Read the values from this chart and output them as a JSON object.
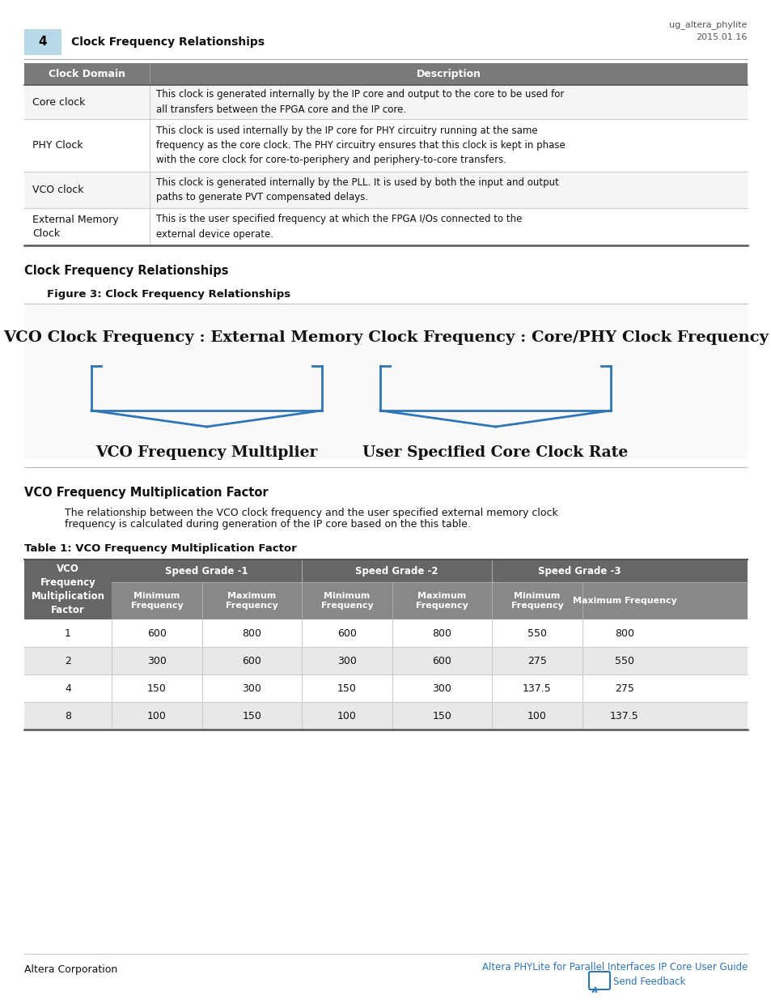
{
  "page_num": "4",
  "header_title": "Clock Frequency Relationships",
  "header_right": "ug_altera_phylite\n2015.01.16",
  "header_bg": "#b8d8e8",
  "top_table_header_bg": "#7a7a7a",
  "top_table_header_fg": "#ffffff",
  "top_table_cols": [
    "Clock Domain",
    "Description"
  ],
  "top_table_rows": [
    [
      "Core clock",
      "This clock is generated internally by the IP core and output to the core to be used for\nall transfers between the FPGA core and the IP core."
    ],
    [
      "PHY Clock",
      "This clock is used internally by the IP core for PHY circuitry running at the same\nfrequency as the core clock. The PHY circuitry ensures that this clock is kept in phase\nwith the core clock for core-to-periphery and periphery-to-core transfers."
    ],
    [
      "VCO clock",
      "This clock is generated internally by the PLL. It is used by both the input and output\npaths to generate PVT compensated delays."
    ],
    [
      "External Memory\nClock",
      "This is the user specified frequency at which the FPGA I/Os connected to the\nexternal device operate."
    ]
  ],
  "section_title": "Clock Frequency Relationships",
  "figure_label": "Figure 3: Clock Frequency Relationships",
  "diagram_title": "VCO Clock Frequency : External Memory Clock Frequency : Core/PHY Clock Frequency",
  "bracket_left_label": "VCO Frequency Multiplier",
  "bracket_right_label": "User Specified Core Clock Rate",
  "bracket_color": "#2e75b6",
  "vco_section_title": "VCO Frequency Multiplication Factor",
  "vco_section_body1": "The relationship between the VCO clock frequency and the user specified external memory clock",
  "vco_section_body2": "frequency is calculated during generation of the IP core based on the this table.",
  "table2_title": "Table 1: VCO Frequency Multiplication Factor",
  "table2_header_bg": "#666666",
  "table2_header_fg": "#ffffff",
  "table2_subheader_bg": "#888888",
  "table2_row_bg_odd": "#ffffff",
  "table2_row_bg_even": "#e8e8e8",
  "table2_col0_header": "VCO\nFrequency\nMultiplication\nFactor",
  "table2_grade_headers": [
    "Speed Grade -1",
    "Speed Grade -2",
    "Speed Grade -3"
  ],
  "table2_sub_headers": [
    "Minimum\nFrequency",
    "Maximum\nFrequency",
    "Minimum\nFrequency",
    "Maximum\nFrequency",
    "Minimum\nFrequency",
    "Maximum Frequency"
  ],
  "table2_data": [
    [
      "1",
      "600",
      "800",
      "600",
      "800",
      "550",
      "800"
    ],
    [
      "2",
      "300",
      "600",
      "300",
      "600",
      "275",
      "550"
    ],
    [
      "4",
      "150",
      "300",
      "150",
      "300",
      "137.5",
      "275"
    ],
    [
      "8",
      "100",
      "150",
      "100",
      "150",
      "100",
      "137.5"
    ]
  ],
  "footer_left": "Altera Corporation",
  "footer_link": "Altera PHYLite for Parallel Interfaces IP Core User Guide",
  "footer_feedback": "Send Feedback",
  "link_color": "#2e75b6",
  "page_bg": "#ffffff"
}
